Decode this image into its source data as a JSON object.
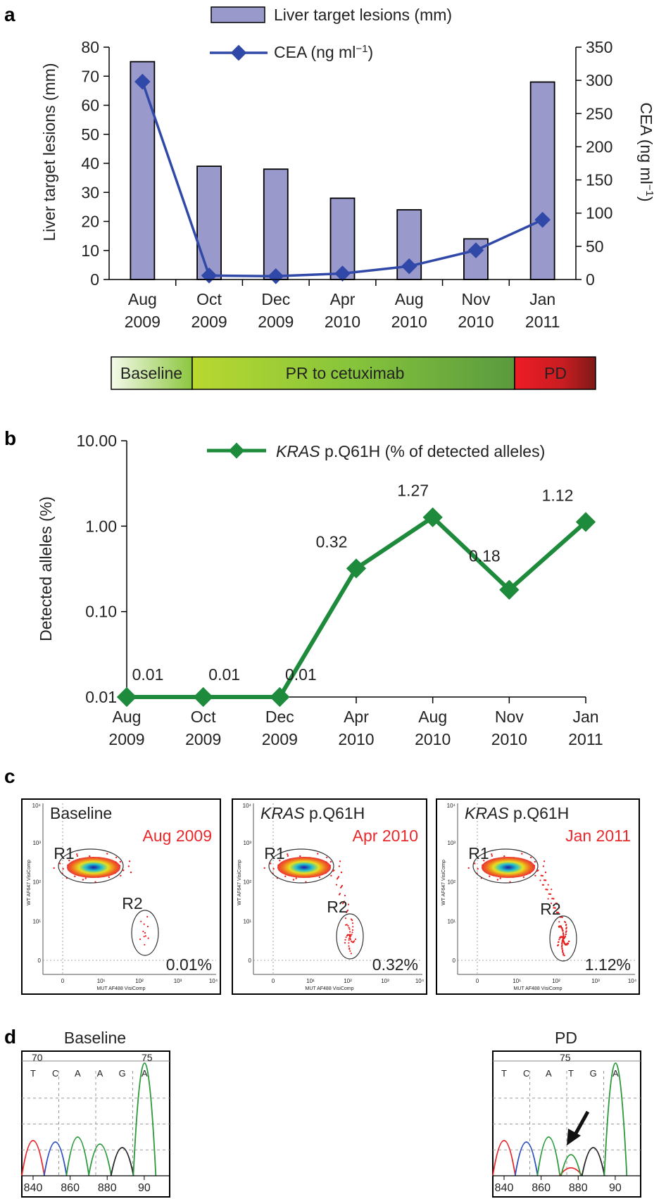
{
  "panel_a": {
    "letter": "a",
    "legend": {
      "bars": "Liver target lesions (mm)",
      "line": "CEA (ng ml",
      "line_sup": "−1",
      "line_end": ")"
    },
    "ylabel_left": "Liver target lesions (mm)",
    "ylabel_right": "CEA (ng ml",
    "ylabel_right_sup": "−1",
    "ylabel_right_end": ")",
    "left_ticks": [
      "0",
      "10",
      "20",
      "30",
      "40",
      "50",
      "60",
      "70",
      "80"
    ],
    "right_ticks": [
      "0",
      "50",
      "100",
      "150",
      "200",
      "250",
      "300",
      "350"
    ],
    "x_month": [
      "Aug",
      "Oct",
      "Dec",
      "Apr",
      "Aug",
      "Nov",
      "Jan"
    ],
    "x_year": [
      "2009",
      "2009",
      "2009",
      "2010",
      "2010",
      "2010",
      "2011"
    ],
    "timeline": {
      "baseline": "Baseline",
      "pr": "PR to cetuximab",
      "pd": "PD"
    },
    "colors": {
      "bar_fill": "#9999cc",
      "bar_stroke": "#000000",
      "line": "#3048a8",
      "baseline": "#8cc63f",
      "pr_start": "#b5d334",
      "pr_end": "#4f9a3a",
      "pd_start": "#e8232a",
      "pd_end": "#7a1a14"
    }
  },
  "panel_b": {
    "letter": "b",
    "legend_italic": "KRAS",
    "legend_rest": " p.Q61H (% of detected alleles)",
    "ylabel": "Detected alleles (%)",
    "y_ticks": [
      "0.01",
      "0.10",
      "1.00",
      "10.00"
    ],
    "x_month": [
      "Aug",
      "Oct",
      "Dec",
      "Apr",
      "Aug",
      "Nov",
      "Jan"
    ],
    "x_year": [
      "2009",
      "2009",
      "2009",
      "2010",
      "2010",
      "2010",
      "2011"
    ],
    "point_labels": [
      "0.01",
      "0.01",
      "0.01",
      "0.32",
      "1.27",
      "0.18",
      "1.12"
    ],
    "colors": {
      "line": "#1e8a3c"
    }
  },
  "panel_c": {
    "letter": "c",
    "plots": [
      {
        "title_plain": "Baseline",
        "title_italic": "",
        "title_rest": "",
        "date": "Aug 2009",
        "r1": "R1",
        "r2": "R2",
        "pct": "0.01%",
        "xaxis": "MUT AF488 VisiComp",
        "yaxis": "WT AF647 VisiComp"
      },
      {
        "title_plain": "",
        "title_italic": "KRAS",
        "title_rest": " p.Q61H",
        "date": "Apr 2010",
        "r1": "R1",
        "r2": "R2",
        "pct": "0.32%",
        "xaxis": "MUT AF488 VisiComp",
        "yaxis": "WT AF647 VisiComp"
      },
      {
        "title_plain": "",
        "title_italic": "KRAS",
        "title_rest": " p.Q61H",
        "date": "Jan 2011",
        "r1": "R1",
        "r2": "R2",
        "pct": "1.12%",
        "xaxis": "MUT AF488 VisiComp",
        "yaxis": "WT AF647 VisiComp"
      }
    ],
    "axis_ticks": [
      "0",
      "10¹",
      "10²",
      "10³",
      "10⁴"
    ]
  },
  "panel_d": {
    "letter": "d",
    "left": {
      "title": "Baseline",
      "top_nums": [
        "70",
        "75"
      ],
      "bases": [
        "T",
        "C",
        "A",
        "A",
        "G",
        "A"
      ],
      "x_ticks": [
        "840",
        "860",
        "880",
        "90"
      ]
    },
    "right": {
      "title": "PD",
      "top_nums": [
        "75"
      ],
      "bases": [
        "T",
        "C",
        "A",
        "T",
        "G",
        "A"
      ],
      "x_ticks": [
        "840",
        "860",
        "880",
        "90"
      ]
    },
    "base_colors": {
      "T": "#e8282b",
      "C": "#2a4fc0",
      "A": "#2a9a3a",
      "G": "#222222"
    }
  },
  "chart_data": [
    {
      "type": "bar",
      "categories": [
        "Aug 2009",
        "Oct 2009",
        "Dec 2009",
        "Apr 2010",
        "Aug 2010",
        "Nov 2010",
        "Jan 2011"
      ],
      "series": [
        {
          "name": "Liver target lesions (mm)",
          "type": "bar",
          "axis": "left",
          "values": [
            75,
            39,
            38,
            28,
            24,
            14,
            68
          ]
        },
        {
          "name": "CEA (ng ml−1)",
          "type": "line",
          "axis": "right",
          "values": [
            298,
            6,
            5,
            9,
            20,
            44,
            90
          ]
        }
      ],
      "ylabel": "Liver target lesions (mm)",
      "y2label": "CEA (ng ml−1)",
      "ylim": [
        0,
        80
      ],
      "y2lim": [
        0,
        350
      ]
    },
    {
      "type": "line",
      "categories": [
        "Aug 2009",
        "Oct 2009",
        "Dec 2009",
        "Apr 2010",
        "Aug 2010",
        "Nov 2010",
        "Jan 2011"
      ],
      "series": [
        {
          "name": "KRAS p.Q61H (% of detected alleles)",
          "values": [
            0.01,
            0.01,
            0.01,
            0.32,
            1.27,
            0.18,
            1.12
          ]
        }
      ],
      "ylabel": "Detected alleles (%)",
      "yscale": "log",
      "ylim": [
        0.01,
        10
      ]
    }
  ]
}
